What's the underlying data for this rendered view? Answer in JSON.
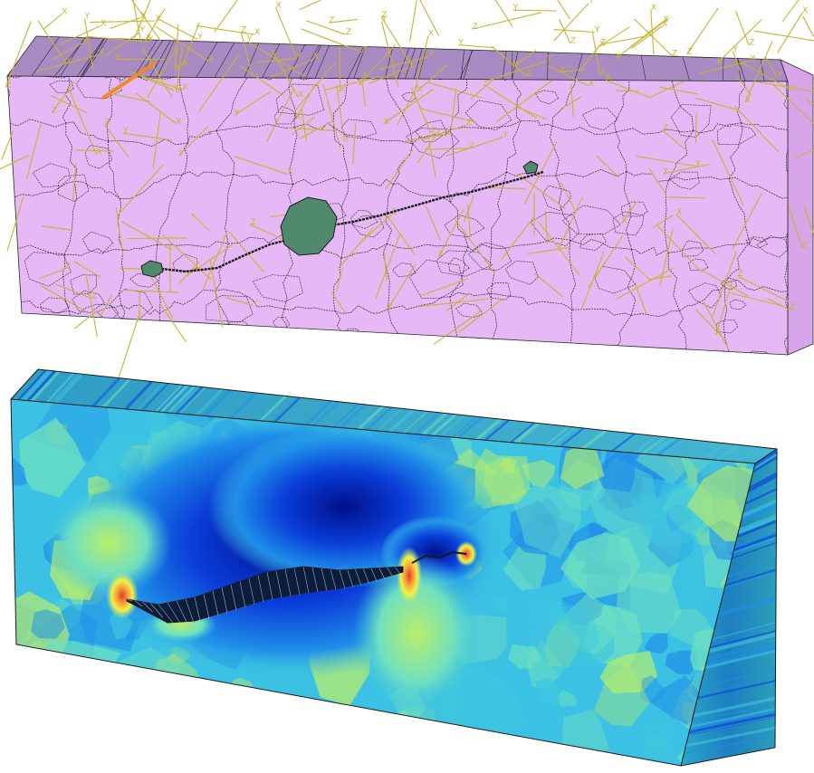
{
  "figure": {
    "top_panel": {
      "description_hidden": "",
      "axis_letters": [
        "X",
        "Y",
        "Z"
      ],
      "colors": {
        "front_face": "#e6b8f5",
        "top_face": "#a98bc4",
        "side_face": "#d7a6ea",
        "grain_boundary": "#2a2a2a",
        "triad_lines": "#c8b430",
        "crack": "#1c1c1c",
        "inclusion": "#4f8a6c",
        "highlight_segment": "#f08a24"
      }
    },
    "bottom_panel": {
      "colormap": [
        "#00108a",
        "#0a3dd8",
        "#1f8fe8",
        "#3fc6df",
        "#6fe0c0",
        "#b9ee6a",
        "#f2f04a",
        "#f6a33a",
        "#e43a2a"
      ],
      "colors": {
        "outline": "#1a1a1a",
        "background_field": "#3bc1e4"
      }
    }
  }
}
